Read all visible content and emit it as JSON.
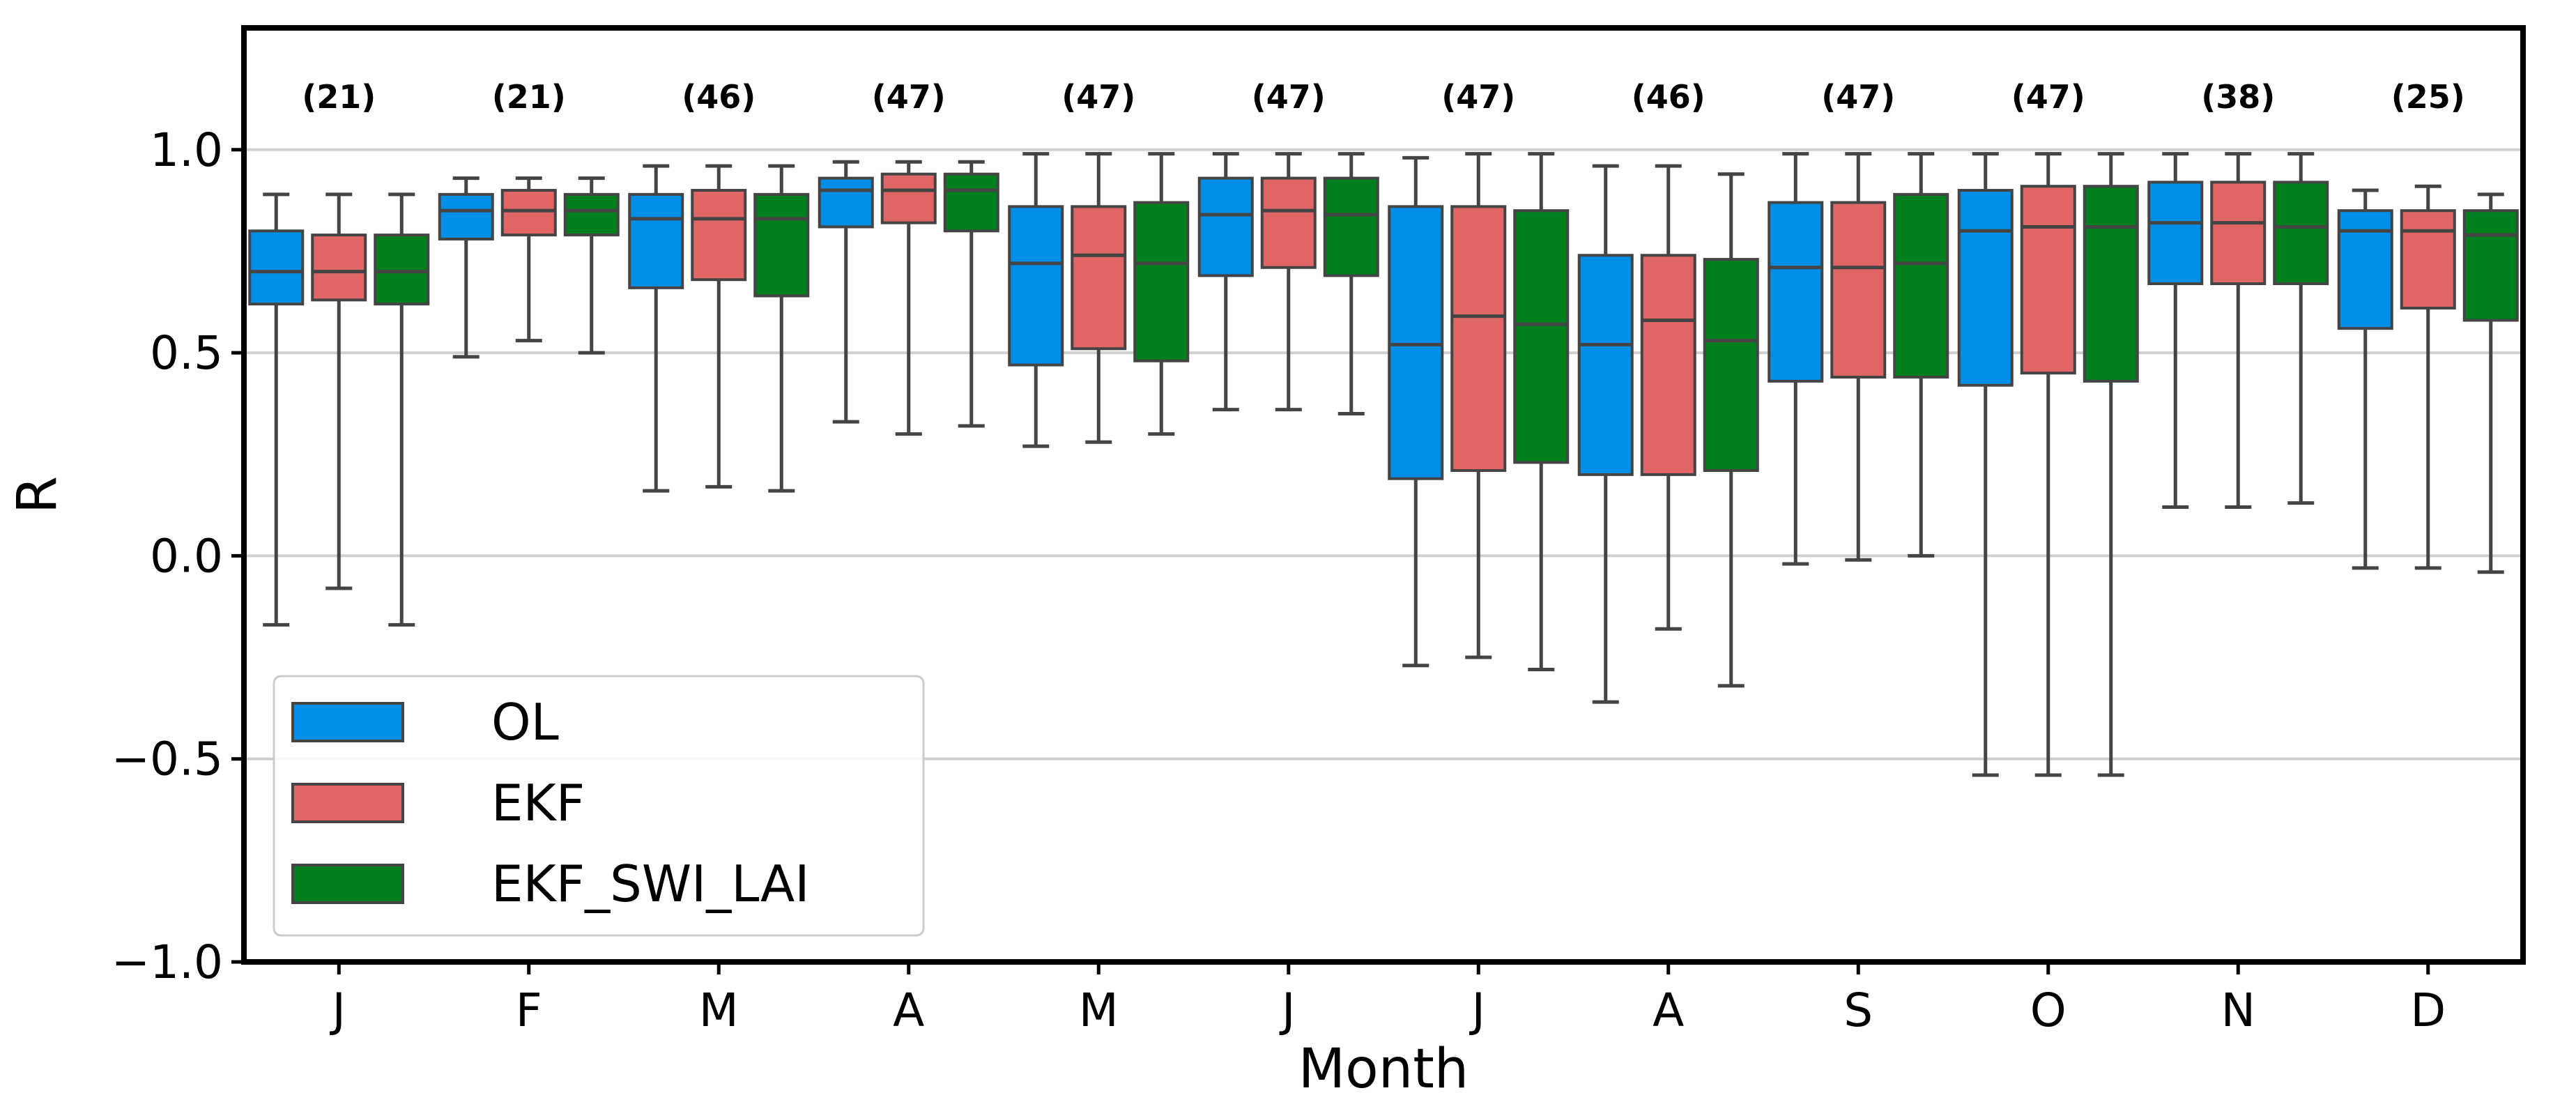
{
  "chart_data": {
    "type": "box",
    "xlabel": "Month",
    "ylabel": "R",
    "ylim": [
      -1.0,
      1.3
    ],
    "yticks": [
      -1.0,
      -0.5,
      0.0,
      0.5,
      1.0
    ],
    "ytick_labels": [
      "−1.0",
      "−0.5",
      "0.0",
      "0.5",
      "1.0"
    ],
    "grid": "horizontal",
    "legend_position": "lower-left",
    "categories": [
      "J",
      "F",
      "M",
      "A",
      "M",
      "J",
      "J",
      "A",
      "S",
      "O",
      "N",
      "D"
    ],
    "counts": [
      "(21)",
      "(21)",
      "(46)",
      "(47)",
      "(47)",
      "(47)",
      "(47)",
      "(46)",
      "(47)",
      "(47)",
      "(38)",
      "(25)"
    ],
    "series": [
      {
        "name": "OL",
        "color": "#008fe8",
        "boxes": [
          {
            "whislo": -0.17,
            "q1": 0.62,
            "med": 0.7,
            "q3": 0.8,
            "whishi": 0.89
          },
          {
            "whislo": 0.49,
            "q1": 0.78,
            "med": 0.85,
            "q3": 0.89,
            "whishi": 0.93
          },
          {
            "whislo": 0.16,
            "q1": 0.66,
            "med": 0.83,
            "q3": 0.89,
            "whishi": 0.96
          },
          {
            "whislo": 0.33,
            "q1": 0.81,
            "med": 0.9,
            "q3": 0.93,
            "whishi": 0.97
          },
          {
            "whislo": 0.27,
            "q1": 0.47,
            "med": 0.72,
            "q3": 0.86,
            "whishi": 0.99
          },
          {
            "whislo": 0.36,
            "q1": 0.69,
            "med": 0.84,
            "q3": 0.93,
            "whishi": 0.99
          },
          {
            "whislo": -0.27,
            "q1": 0.19,
            "med": 0.52,
            "q3": 0.86,
            "whishi": 0.98
          },
          {
            "whislo": -0.36,
            "q1": 0.2,
            "med": 0.52,
            "q3": 0.74,
            "whishi": 0.96
          },
          {
            "whislo": -0.02,
            "q1": 0.43,
            "med": 0.71,
            "q3": 0.87,
            "whishi": 0.99
          },
          {
            "whislo": -0.54,
            "q1": 0.42,
            "med": 0.8,
            "q3": 0.9,
            "whishi": 0.99
          },
          {
            "whislo": 0.12,
            "q1": 0.67,
            "med": 0.82,
            "q3": 0.92,
            "whishi": 0.99
          },
          {
            "whislo": -0.03,
            "q1": 0.56,
            "med": 0.8,
            "q3": 0.85,
            "whishi": 0.9
          }
        ]
      },
      {
        "name": "EKF",
        "color": "#e06666",
        "boxes": [
          {
            "whislo": -0.08,
            "q1": 0.63,
            "med": 0.7,
            "q3": 0.79,
            "whishi": 0.89
          },
          {
            "whislo": 0.53,
            "q1": 0.79,
            "med": 0.85,
            "q3": 0.9,
            "whishi": 0.93
          },
          {
            "whislo": 0.17,
            "q1": 0.68,
            "med": 0.83,
            "q3": 0.9,
            "whishi": 0.96
          },
          {
            "whislo": 0.3,
            "q1": 0.82,
            "med": 0.9,
            "q3": 0.94,
            "whishi": 0.97
          },
          {
            "whislo": 0.28,
            "q1": 0.51,
            "med": 0.74,
            "q3": 0.86,
            "whishi": 0.99
          },
          {
            "whislo": 0.36,
            "q1": 0.71,
            "med": 0.85,
            "q3": 0.93,
            "whishi": 0.99
          },
          {
            "whislo": -0.25,
            "q1": 0.21,
            "med": 0.59,
            "q3": 0.86,
            "whishi": 0.99
          },
          {
            "whislo": -0.18,
            "q1": 0.2,
            "med": 0.58,
            "q3": 0.74,
            "whishi": 0.96
          },
          {
            "whislo": -0.01,
            "q1": 0.44,
            "med": 0.71,
            "q3": 0.87,
            "whishi": 0.99
          },
          {
            "whislo": -0.54,
            "q1": 0.45,
            "med": 0.81,
            "q3": 0.91,
            "whishi": 0.99
          },
          {
            "whislo": 0.12,
            "q1": 0.67,
            "med": 0.82,
            "q3": 0.92,
            "whishi": 0.99
          },
          {
            "whislo": -0.03,
            "q1": 0.61,
            "med": 0.8,
            "q3": 0.85,
            "whishi": 0.91
          }
        ]
      },
      {
        "name": "EKF_SWI_LAI",
        "color": "#007f1e",
        "boxes": [
          {
            "whislo": -0.17,
            "q1": 0.62,
            "med": 0.7,
            "q3": 0.79,
            "whishi": 0.89
          },
          {
            "whislo": 0.5,
            "q1": 0.79,
            "med": 0.85,
            "q3": 0.89,
            "whishi": 0.93
          },
          {
            "whislo": 0.16,
            "q1": 0.64,
            "med": 0.83,
            "q3": 0.89,
            "whishi": 0.96
          },
          {
            "whislo": 0.32,
            "q1": 0.8,
            "med": 0.9,
            "q3": 0.94,
            "whishi": 0.97
          },
          {
            "whislo": 0.3,
            "q1": 0.48,
            "med": 0.72,
            "q3": 0.87,
            "whishi": 0.99
          },
          {
            "whislo": 0.35,
            "q1": 0.69,
            "med": 0.84,
            "q3": 0.93,
            "whishi": 0.99
          },
          {
            "whislo": -0.28,
            "q1": 0.23,
            "med": 0.57,
            "q3": 0.85,
            "whishi": 0.99
          },
          {
            "whislo": -0.32,
            "q1": 0.21,
            "med": 0.53,
            "q3": 0.73,
            "whishi": 0.94
          },
          {
            "whislo": 0.0,
            "q1": 0.44,
            "med": 0.72,
            "q3": 0.89,
            "whishi": 0.99
          },
          {
            "whislo": -0.54,
            "q1": 0.43,
            "med": 0.81,
            "q3": 0.91,
            "whishi": 0.99
          },
          {
            "whislo": 0.13,
            "q1": 0.67,
            "med": 0.81,
            "q3": 0.92,
            "whishi": 0.99
          },
          {
            "whislo": -0.04,
            "q1": 0.58,
            "med": 0.79,
            "q3": 0.85,
            "whishi": 0.89
          }
        ]
      }
    ]
  }
}
